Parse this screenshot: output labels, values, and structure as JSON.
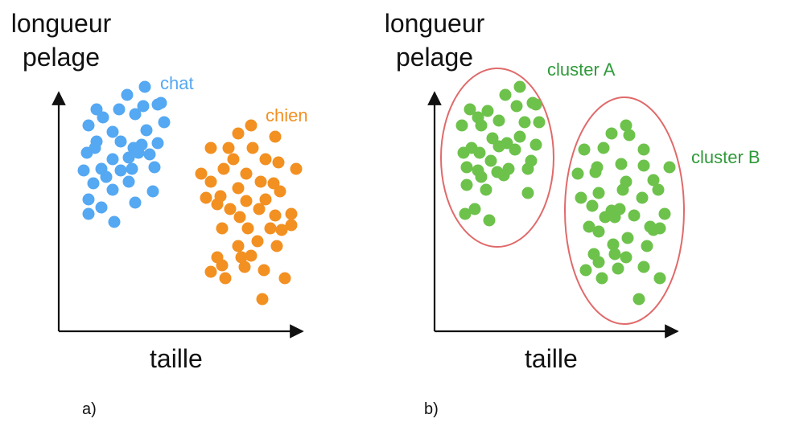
{
  "colors": {
    "chat": "#55a8f2",
    "chien": "#f29022",
    "cluster": "#6dc24b",
    "cluster_label": "#2f9a3a",
    "ellipse": "#e06a6a",
    "axis": "#111111"
  },
  "panel_a": {
    "tag": "a)",
    "ylabel_line1": "longueur",
    "ylabel_line2": "pelage",
    "xlabel": "taille",
    "label_chat": "chat",
    "label_chien": "chien"
  },
  "panel_b": {
    "tag": "b)",
    "ylabel_line1": "longueur",
    "ylabel_line2": "pelage",
    "xlabel": "taille",
    "label_cluster_a": "cluster A",
    "label_cluster_b": "cluster B"
  }
}
